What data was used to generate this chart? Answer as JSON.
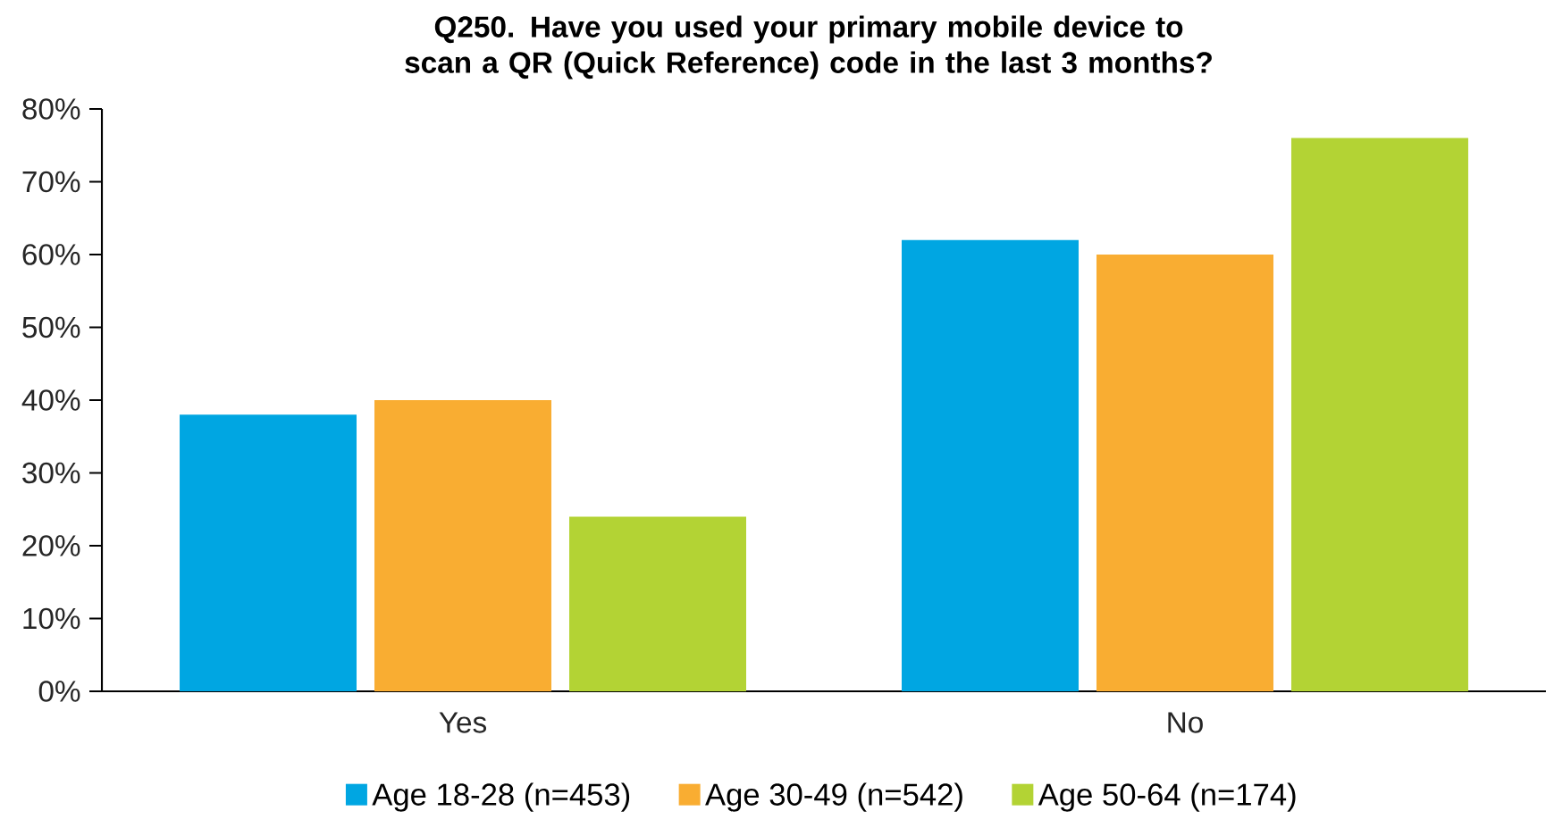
{
  "chart_data": {
    "type": "bar",
    "title": "Q250. Have you used your primary mobile device to scan a QR (Quick Reference) code in the last 3 months?",
    "categories": [
      "Yes",
      "No"
    ],
    "series": [
      {
        "name": "Age 18-28 (n=453)",
        "color": "#00a6e2",
        "values": [
          38,
          62
        ]
      },
      {
        "name": "Age 30-49 (n=542)",
        "color": "#f9ad32",
        "values": [
          40,
          60
        ]
      },
      {
        "name": "Age 50-64 (n=174)",
        "color": "#b3d334",
        "values": [
          24,
          76
        ]
      }
    ],
    "ylim": [
      0,
      80
    ],
    "yticks": [
      {
        "value": 0,
        "label": "0%"
      },
      {
        "value": 10,
        "label": "10%"
      },
      {
        "value": 20,
        "label": "20%"
      },
      {
        "value": 30,
        "label": "30%"
      },
      {
        "value": 40,
        "label": "40%"
      },
      {
        "value": 50,
        "label": "50%"
      },
      {
        "value": 60,
        "label": "60%"
      },
      {
        "value": 70,
        "label": "70%"
      },
      {
        "value": 80,
        "label": "80%"
      }
    ],
    "grid": false,
    "legend": "bottom"
  }
}
